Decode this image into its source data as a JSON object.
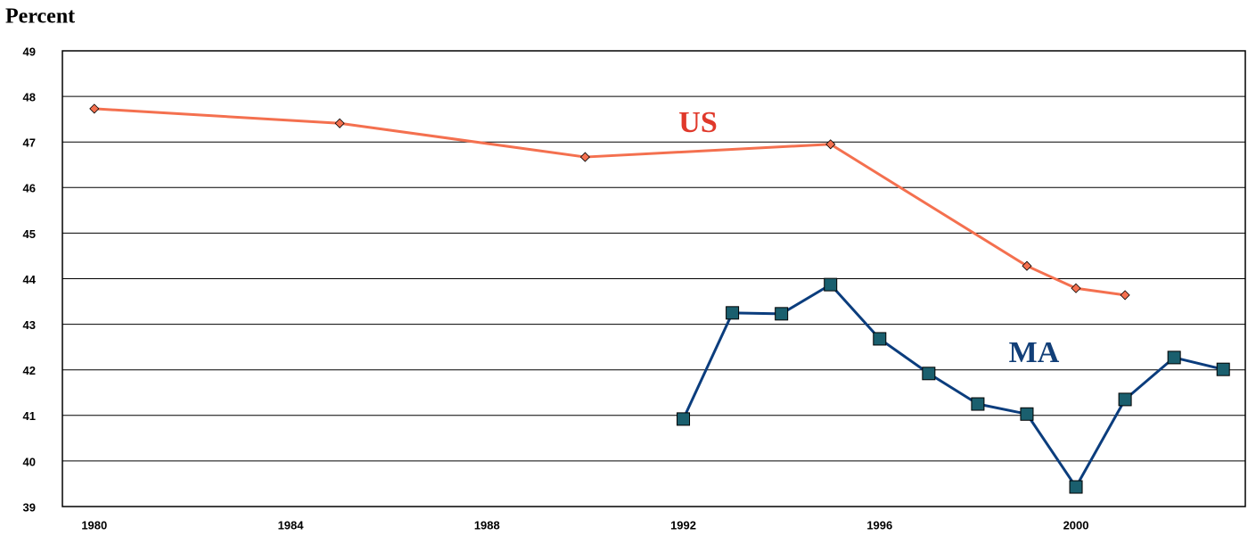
{
  "chart_data": {
    "type": "line",
    "y_label": "Percent",
    "xlim": [
      1979.35,
      2003.45
    ],
    "xticks": [
      1980,
      1984,
      1988,
      1992,
      1996,
      2000
    ],
    "ylim": [
      39,
      49
    ],
    "yticks": [
      39,
      40,
      41,
      42,
      43,
      44,
      45,
      46,
      47,
      48,
      49
    ],
    "grid": true,
    "series": [
      {
        "name": "US",
        "color": "#f4704f",
        "marker": "diamond",
        "marker_color": "#f4704f",
        "label_color": "#e0392b",
        "x": [
          1980,
          1985,
          1990,
          1995,
          1999,
          2000,
          2001
        ],
        "values": [
          47.73,
          47.41,
          46.67,
          46.95,
          44.28,
          43.79,
          43.64
        ]
      },
      {
        "name": "MA",
        "color": "#0b3d7d",
        "marker": "square",
        "marker_color": "#1a5f6e",
        "label_color": "#123f78",
        "x": [
          1992,
          1993,
          1994,
          1995,
          1996,
          1997,
          1998,
          1999,
          2000,
          2001,
          2002,
          2003
        ],
        "values": [
          40.92,
          43.25,
          43.23,
          43.87,
          42.68,
          41.92,
          41.25,
          41.03,
          39.43,
          41.35,
          42.27,
          42.01
        ]
      }
    ]
  }
}
